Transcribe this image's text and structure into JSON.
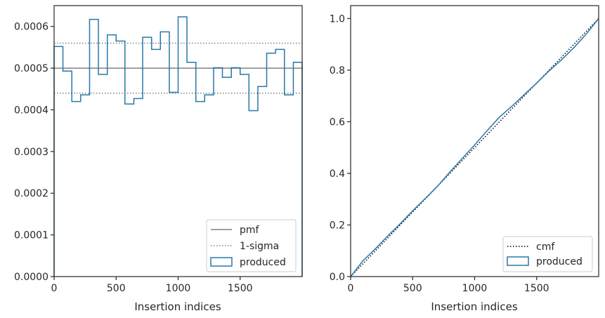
{
  "chart_data": [
    {
      "type": "step",
      "xlabel": "Insertion indices",
      "ylabel": "",
      "xlim": [
        0,
        2000
      ],
      "ylim": [
        0,
        0.00065
      ],
      "xticks": [
        0,
        500,
        1000,
        1500
      ],
      "xtick_labels": [
        "0",
        "500",
        "1000",
        "1500"
      ],
      "yticks": [
        0,
        0.0001,
        0.0002,
        0.0003,
        0.0004,
        0.0005,
        0.0006
      ],
      "ytick_labels": [
        "0.0000",
        "0.0001",
        "0.0002",
        "0.0003",
        "0.0004",
        "0.0005",
        "0.0006"
      ],
      "grid": false,
      "legend_position": "bottom-right",
      "bin_edges": [
        0,
        71,
        143,
        214,
        286,
        357,
        429,
        500,
        571,
        643,
        714,
        786,
        857,
        929,
        1000,
        1071,
        1143,
        1214,
        1286,
        1357,
        1429,
        1500,
        1571,
        1643,
        1714,
        1786,
        1857,
        1929,
        2000
      ],
      "series": [
        {
          "name": "pmf",
          "style": "solid",
          "color": "#808080",
          "values": [
            0.0005
          ]
        },
        {
          "name": "1-sigma",
          "style": "dotted",
          "color": "#808080",
          "values": [
            0.00044,
            0.00056
          ]
        },
        {
          "name": "produced",
          "style": "step",
          "color": "#2878a8",
          "values": [
            0.000552,
            0.000493,
            0.00042,
            0.000436,
            0.000617,
            0.000485,
            0.00058,
            0.000565,
            0.000414,
            0.000427,
            0.000574,
            0.000545,
            0.000587,
            0.000442,
            0.000623,
            0.000514,
            0.00042,
            0.000436,
            0.000501,
            0.000478,
            0.000501,
            0.000485,
            0.000398,
            0.000456,
            0.000536,
            0.000545,
            0.000436,
            0.000514
          ]
        }
      ]
    },
    {
      "type": "line",
      "xlabel": "Insertion indices",
      "ylabel": "",
      "xlim": [
        0,
        2000
      ],
      "ylim": [
        0,
        1.05
      ],
      "xticks": [
        0,
        500,
        1000,
        1500
      ],
      "xtick_labels": [
        "0",
        "500",
        "1000",
        "1500"
      ],
      "yticks": [
        0,
        0.2,
        0.4,
        0.6,
        0.8,
        1.0
      ],
      "ytick_labels": [
        "0.0",
        "0.2",
        "0.4",
        "0.6",
        "0.8",
        "1.0"
      ],
      "grid": false,
      "legend_position": "bottom-right",
      "series": [
        {
          "name": "cmf",
          "style": "dotted",
          "color": "#000000",
          "x": [
            0,
            2000
          ],
          "y": [
            0,
            1.0
          ]
        },
        {
          "name": "produced",
          "style": "step",
          "color": "#2878a8",
          "x": [
            0,
            100,
            200,
            300,
            400,
            500,
            600,
            700,
            800,
            900,
            1000,
            1100,
            1200,
            1300,
            1400,
            1500,
            1600,
            1700,
            1800,
            1900,
            2000
          ],
          "y": [
            0,
            0.062,
            0.108,
            0.158,
            0.205,
            0.255,
            0.302,
            0.35,
            0.405,
            0.458,
            0.51,
            0.565,
            0.618,
            0.66,
            0.705,
            0.75,
            0.797,
            0.84,
            0.887,
            0.94,
            1.0
          ]
        }
      ]
    }
  ]
}
